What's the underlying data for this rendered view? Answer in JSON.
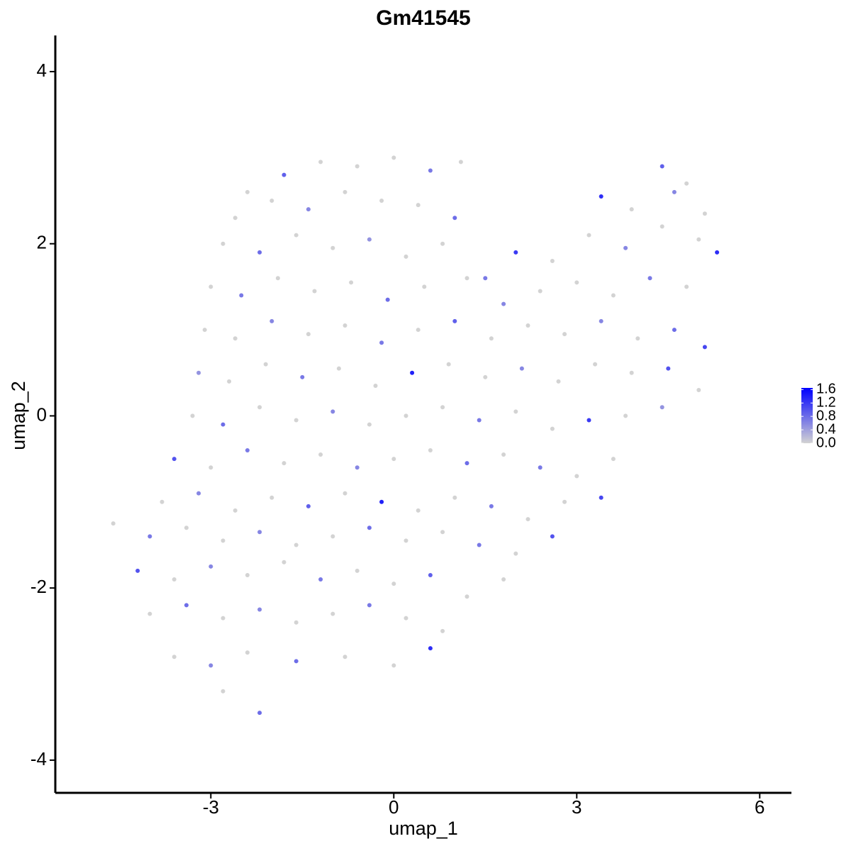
{
  "chart_data": {
    "type": "scatter",
    "title": "Gm41545",
    "xlabel": "umap_1",
    "ylabel": "umap_2",
    "xlim": [
      -5.55,
      6.52
    ],
    "ylim": [
      -4.38,
      4.42
    ],
    "xticks": [
      -3,
      0,
      3,
      6
    ],
    "yticks": [
      -4,
      -2,
      0,
      2,
      4
    ],
    "clim": [
      0,
      1.65
    ],
    "cticks": [
      {
        "value": 0,
        "label": "0.0"
      },
      0.4,
      0.8,
      1.2,
      1.6
    ],
    "low_color": "#d3d3d3",
    "high_color": "#0000ff",
    "x": [
      -2.4,
      -1.8,
      -1.2,
      -0.6,
      0,
      0.6,
      1.1,
      4.4,
      4.8,
      -2.6,
      -2.0,
      -1.4,
      -0.8,
      -0.2,
      0.4,
      1.0,
      3.4,
      3.9,
      4.6,
      5.1,
      -2.8,
      -2.2,
      -1.6,
      -1.0,
      -0.4,
      0.2,
      0.8,
      1.5,
      2.0,
      2.6,
      3.2,
      3.8,
      4.4,
      5.0,
      5.3,
      -3.0,
      -2.5,
      -1.9,
      -1.3,
      -0.7,
      -0.1,
      0.5,
      1.2,
      1.8,
      2.4,
      3.0,
      3.6,
      4.2,
      4.8,
      -3.1,
      -2.6,
      -2.0,
      -1.4,
      -0.8,
      -0.2,
      0.4,
      1.0,
      1.6,
      2.2,
      2.8,
      3.4,
      4.0,
      4.6,
      5.1,
      -3.2,
      -2.7,
      -2.1,
      -1.5,
      -0.9,
      -0.3,
      0.3,
      0.9,
      1.5,
      2.1,
      2.7,
      3.3,
      3.9,
      4.5,
      5.0,
      -3.3,
      -2.8,
      -2.2,
      -1.6,
      -1.0,
      -0.4,
      0.2,
      0.8,
      1.4,
      2.0,
      2.6,
      3.2,
      3.8,
      4.4,
      -3.6,
      -3.0,
      -2.4,
      -1.8,
      -1.2,
      -0.6,
      0.0,
      0.6,
      1.2,
      1.8,
      2.4,
      3.0,
      3.6,
      -3.8,
      -3.2,
      -2.6,
      -2.0,
      -1.4,
      -0.8,
      -0.2,
      0.4,
      1.0,
      1.6,
      2.2,
      2.8,
      3.4,
      -4.6,
      -4.0,
      -3.4,
      -2.8,
      -2.2,
      -1.6,
      -1.0,
      -0.4,
      0.2,
      0.8,
      1.4,
      2.0,
      2.6,
      -4.2,
      -3.6,
      -3.0,
      -2.4,
      -1.8,
      -1.2,
      -0.6,
      0.0,
      0.6,
      1.2,
      1.8,
      -4.0,
      -3.4,
      -2.8,
      -2.2,
      -1.6,
      -1.0,
      -0.4,
      0.2,
      0.8,
      -3.6,
      -3.0,
      -2.4,
      -1.6,
      -0.8,
      0.0,
      0.6,
      -2.2,
      -2.8
    ],
    "y": [
      2.6,
      2.8,
      2.95,
      2.9,
      3.0,
      2.85,
      2.95,
      2.9,
      2.7,
      2.3,
      2.5,
      2.4,
      2.6,
      2.5,
      2.45,
      2.3,
      2.55,
      2.4,
      2.6,
      2.35,
      2.0,
      1.9,
      2.1,
      1.95,
      2.05,
      1.85,
      2.0,
      1.6,
      1.9,
      1.8,
      2.1,
      1.95,
      2.2,
      2.05,
      1.9,
      1.5,
      1.4,
      1.6,
      1.45,
      1.55,
      1.35,
      1.5,
      1.6,
      1.3,
      1.45,
      1.55,
      1.4,
      1.6,
      1.5,
      1.0,
      0.9,
      1.1,
      0.95,
      1.05,
      0.85,
      1.0,
      1.1,
      0.9,
      1.05,
      0.95,
      1.1,
      0.9,
      1.0,
      0.8,
      0.5,
      0.4,
      0.6,
      0.45,
      0.55,
      0.35,
      0.5,
      0.6,
      0.45,
      0.55,
      0.4,
      0.6,
      0.5,
      0.55,
      0.3,
      0.0,
      -0.1,
      0.1,
      -0.05,
      0.05,
      -0.1,
      0.0,
      0.1,
      -0.05,
      0.05,
      -0.15,
      -0.05,
      0.0,
      0.1,
      -0.5,
      -0.6,
      -0.4,
      -0.55,
      -0.45,
      -0.6,
      -0.5,
      -0.4,
      -0.55,
      -0.45,
      -0.6,
      -0.7,
      -0.5,
      -1.0,
      -0.9,
      -1.1,
      -0.95,
      -1.05,
      -0.9,
      -1.0,
      -1.1,
      -0.95,
      -1.05,
      -1.2,
      -1.0,
      -0.95,
      -1.25,
      -1.4,
      -1.3,
      -1.45,
      -1.35,
      -1.5,
      -1.4,
      -1.3,
      -1.45,
      -1.35,
      -1.5,
      -1.6,
      -1.4,
      -1.8,
      -1.9,
      -1.75,
      -1.85,
      -1.7,
      -1.9,
      -1.8,
      -1.95,
      -1.85,
      -2.1,
      -1.9,
      -2.3,
      -2.2,
      -2.35,
      -2.25,
      -2.4,
      -2.3,
      -2.2,
      -2.35,
      -2.5,
      -2.8,
      -2.9,
      -2.75,
      -2.85,
      -2.8,
      -2.9,
      -2.7,
      -3.45,
      -3.2
    ],
    "expression": [
      0,
      0.9,
      0,
      0,
      0,
      0.7,
      0,
      0.9,
      0,
      0,
      0,
      0.6,
      0,
      0,
      0,
      0.8,
      1.3,
      0,
      0.6,
      0,
      0,
      0.8,
      0,
      0,
      0.5,
      0,
      0,
      0.7,
      1.2,
      0,
      0,
      0.6,
      0,
      0,
      1.3,
      0,
      0.7,
      0,
      0,
      0,
      0.8,
      0,
      0,
      0.6,
      0,
      0,
      0,
      0.7,
      0,
      0,
      0,
      0.6,
      0,
      0,
      0.7,
      0,
      0.9,
      0,
      0,
      0,
      0.6,
      0,
      0.8,
      1.1,
      0.5,
      0,
      0,
      0.7,
      0,
      0,
      1.4,
      0,
      0,
      0.6,
      0,
      0,
      0,
      1.0,
      0,
      0,
      0.8,
      0,
      0,
      0.6,
      0,
      0,
      0,
      0.7,
      0,
      0,
      1.2,
      0,
      0.5,
      1.0,
      0,
      0.7,
      0,
      0,
      0.6,
      0,
      0,
      0.8,
      0,
      0.7,
      0,
      0,
      0,
      0.6,
      0,
      0,
      0.9,
      0,
      1.4,
      0,
      0,
      0.7,
      0,
      0,
      1.1,
      0,
      0.7,
      0,
      0,
      0.6,
      0,
      0,
      0.8,
      0,
      0,
      0.7,
      0,
      1.0,
      1.0,
      0,
      0.6,
      0,
      0,
      0.7,
      0,
      0,
      0.9,
      0,
      0,
      0,
      0.8,
      0,
      0.6,
      0,
      0,
      0.7,
      0,
      0,
      0,
      0.6,
      0,
      0.8,
      0,
      0,
      1.3,
      0.8,
      0
    ]
  }
}
